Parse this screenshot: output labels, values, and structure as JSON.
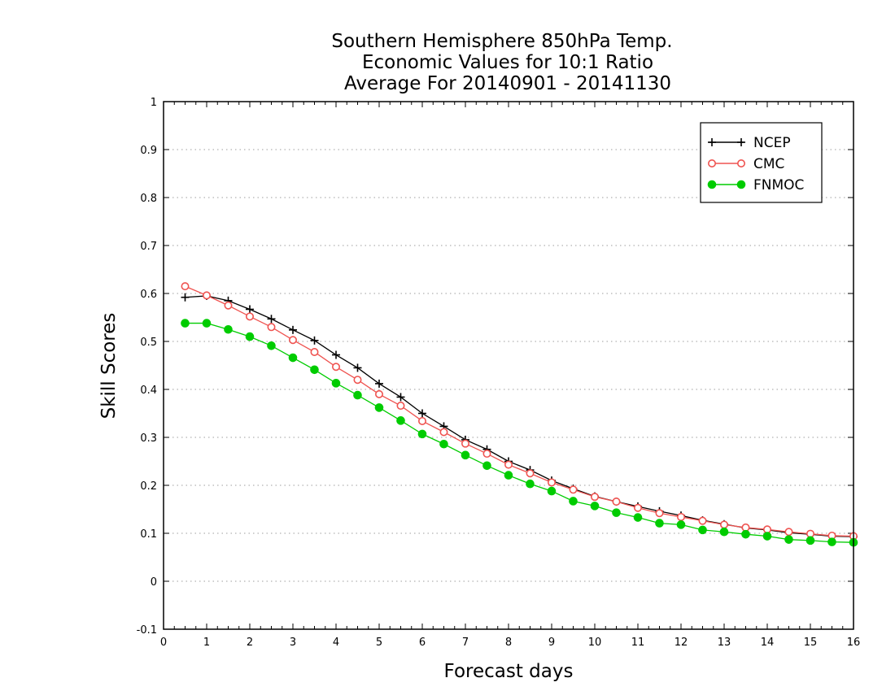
{
  "chart_data": {
    "type": "line",
    "title": [
      "Southern Hemisphere 850hPa Temp.",
      "Economic Values for 10:1 Ratio",
      "Average For 20140901 - 20141130"
    ],
    "xlabel": "Forecast days",
    "ylabel": "Skill Scores",
    "xlim": [
      0,
      16
    ],
    "ylim": [
      -0.1,
      1
    ],
    "x_ticks": [
      "0",
      "1",
      "2",
      "3",
      "4",
      "5",
      "6",
      "7",
      "8",
      "9",
      "10",
      "11",
      "12",
      "13",
      "14",
      "15",
      "16"
    ],
    "y_ticks": [
      "-0.1",
      "0",
      "0.1",
      "0.2",
      "0.3",
      "0.4",
      "0.5",
      "0.6",
      "0.7",
      "0.8",
      "0.9",
      "1"
    ],
    "y_tick_values": [
      -0.1,
      0,
      0.1,
      0.2,
      0.3,
      0.4,
      0.5,
      0.6,
      0.7,
      0.8,
      0.9,
      1.0
    ],
    "grid": "horizontal dotted",
    "legend_position": "top-right",
    "x": [
      0.5,
      1.0,
      1.5,
      2.0,
      2.5,
      3.0,
      3.5,
      4.0,
      4.5,
      5.0,
      5.5,
      6.0,
      6.5,
      7.0,
      7.5,
      8.0,
      8.5,
      9.0,
      9.5,
      10.0,
      10.5,
      11.0,
      11.5,
      12.0,
      12.5,
      13.0,
      13.5,
      14.0,
      14.5,
      15.0,
      15.5,
      16.0
    ],
    "series": [
      {
        "name": "NCEP",
        "color": "#000000",
        "marker": "plus",
        "values": [
          0.592,
          0.595,
          0.585,
          0.567,
          0.547,
          0.524,
          0.502,
          0.472,
          0.445,
          0.412,
          0.384,
          0.35,
          0.323,
          0.295,
          0.275,
          0.25,
          0.232,
          0.21,
          0.193,
          0.177,
          0.166,
          0.156,
          0.146,
          0.137,
          0.127,
          0.119,
          0.111,
          0.107,
          0.101,
          0.098,
          0.094,
          0.093
        ]
      },
      {
        "name": "CMC",
        "color": "#ef5350",
        "marker": "open-circle",
        "values": [
          0.615,
          0.596,
          0.575,
          0.552,
          0.53,
          0.503,
          0.478,
          0.447,
          0.42,
          0.39,
          0.366,
          0.334,
          0.311,
          0.287,
          0.266,
          0.243,
          0.225,
          0.206,
          0.191,
          0.176,
          0.166,
          0.153,
          0.142,
          0.134,
          0.126,
          0.118,
          0.112,
          0.108,
          0.103,
          0.099,
          0.095,
          0.094
        ]
      },
      {
        "name": "FNMOC",
        "color": "#00cc00",
        "marker": "filled-circle",
        "values": [
          0.538,
          0.538,
          0.525,
          0.51,
          0.491,
          0.466,
          0.441,
          0.413,
          0.388,
          0.362,
          0.335,
          0.307,
          0.286,
          0.263,
          0.241,
          0.221,
          0.203,
          0.188,
          0.167,
          0.157,
          0.143,
          0.133,
          0.121,
          0.118,
          0.107,
          0.103,
          0.098,
          0.094,
          0.087,
          0.085,
          0.082,
          0.081
        ]
      }
    ]
  }
}
